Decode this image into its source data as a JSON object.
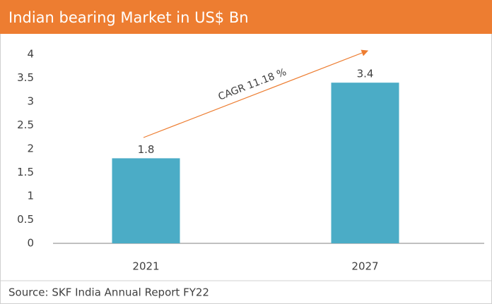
{
  "chart_data": {
    "type": "bar",
    "title": "Indian bearing Market in US$ Bn",
    "categories": [
      "2021",
      "2027"
    ],
    "values": [
      1.8,
      3.4
    ],
    "color": "#4bacc6",
    "ylim": [
      0,
      4
    ],
    "yticks": [
      0,
      0.5,
      1,
      1.5,
      2,
      2.5,
      3,
      3.5,
      4
    ],
    "annotation": "CAGR 11.18  %",
    "annotation_color": "#ed7d31",
    "source": "Source: SKF India Annual Report FY22"
  }
}
